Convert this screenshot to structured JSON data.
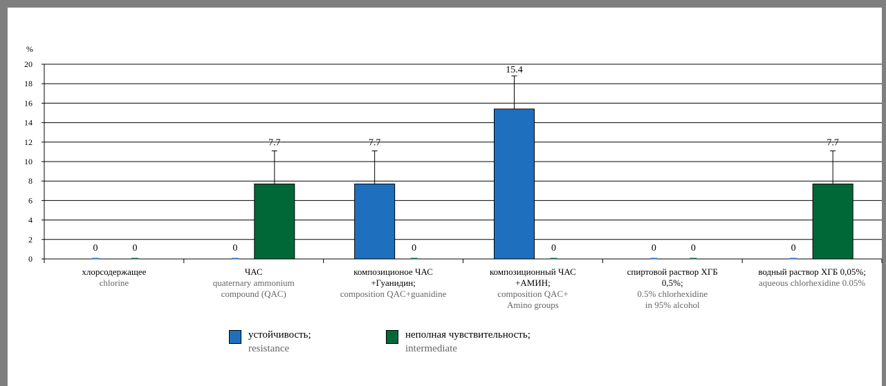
{
  "chart_data": {
    "type": "bar",
    "ylabel": "%",
    "ylim": [
      0,
      20
    ],
    "yticks": [
      0,
      2,
      4,
      6,
      8,
      10,
      12,
      14,
      16,
      18,
      20
    ],
    "grid": true,
    "legend_position": "bottom",
    "categories": [
      {
        "ru": [
          "хлорсодержащее"
        ],
        "en": [
          "chlorine"
        ]
      },
      {
        "ru": [
          "ЧАС"
        ],
        "en": [
          "quaternary ammonium",
          "compound (QAC)"
        ]
      },
      {
        "ru": [
          "композиционое ЧАС",
          "+Гуанидин;"
        ],
        "en": [
          "composition QAC+guanidine"
        ]
      },
      {
        "ru": [
          "композиционный ЧАС",
          "+АМИН;"
        ],
        "en": [
          "composition QAC+",
          "Amino groups"
        ]
      },
      {
        "ru": [
          "спиртовой  раствор ХГБ",
          "0,5%;"
        ],
        "en": [
          "0.5% chlorhexidine",
          "in 95% alcohol"
        ]
      },
      {
        "ru": [
          "водный раствор ХГБ 0,05%;"
        ],
        "en": [
          "aqueous chlorhexidine 0.05%"
        ]
      }
    ],
    "series": [
      {
        "name": "устойчивость;",
        "name_en": "resistance",
        "color": "#1f6fbf",
        "values": [
          0,
          0,
          7.7,
          15.4,
          0,
          0
        ],
        "labels": [
          "0",
          "0",
          "7.7",
          "15.4",
          "0",
          "0"
        ],
        "error_upper": [
          0,
          0,
          11.1,
          18.8,
          0,
          0
        ]
      },
      {
        "name": "неполная чувствительность;",
        "name_en": "intermediate",
        "color": "#006837",
        "values": [
          0,
          7.7,
          0,
          0,
          0,
          7.7
        ],
        "labels": [
          "0",
          "7.7",
          "0",
          "0",
          "0",
          "7.7"
        ],
        "error_upper": [
          0,
          11.1,
          0,
          0,
          0,
          11.1
        ]
      }
    ]
  }
}
